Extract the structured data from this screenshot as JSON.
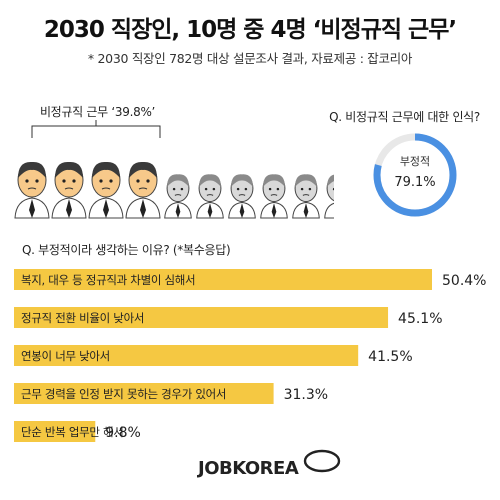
{
  "header": {
    "title": "2030 직장인, 10명 중 4명 ‘비정규직 근무’",
    "subtitle": "* 2030 직장인 782명 대상 설문조사 결과, 자료제공 : 잡코리아"
  },
  "infographic": {
    "bracket_label": "비정규직 근무 ‘39.8%’",
    "highlighted_people": 4,
    "total_people": 10,
    "colors": {
      "highlight_face": "#f7c98a",
      "dim_face": "#d9d9d9",
      "bar": "#f5c842",
      "donut": "#4a90e2",
      "donut_track": "#e8e8e8"
    }
  },
  "perception": {
    "question": "Q. 비정규직 근무에 대한 인식?",
    "label": "부정적",
    "value_text": "79.1%",
    "value": 79.1
  },
  "reasons": {
    "question": "Q. 부정적이라 생각하는 이유? (*복수응답)"
  },
  "chart_data": {
    "type": "bar",
    "orientation": "horizontal",
    "categories": [
      "복지, 대우 등 정규직과 차별이 심해서",
      "정규직 전환 비율이 낮아서",
      "연봉이 너무 낮아서",
      "근무 경력을 인정 받지 못하는 경우가 있어서",
      "단순 반복 업무만 해서"
    ],
    "values": [
      50.4,
      45.1,
      41.5,
      31.3,
      9.8
    ],
    "value_labels": [
      "50.4%",
      "45.1%",
      "41.5%",
      "31.3%",
      "9.8%"
    ],
    "xlim": [
      0,
      60
    ],
    "grid": false,
    "legend": "none"
  },
  "footer": {
    "logo_text": "JOBKOREA"
  }
}
